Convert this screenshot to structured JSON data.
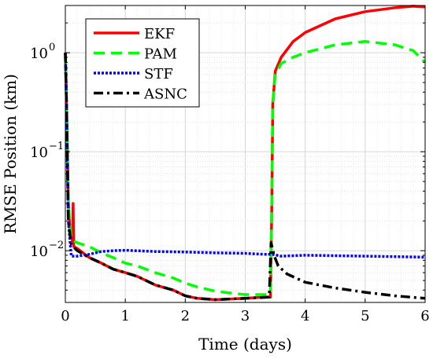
{
  "chart_data": {
    "type": "line",
    "xlabel": "Time (days)",
    "ylabel": "RMSE Position (km)",
    "x_ticks": [
      "0",
      "1",
      "2",
      "3",
      "4",
      "5",
      "6"
    ],
    "y_ticks": [
      {
        "base": "10",
        "exp": "0",
        "value": 1
      },
      {
        "base": "10",
        "exp": "−1",
        "value": 0.1
      },
      {
        "base": "10",
        "exp": "−2",
        "value": 0.01
      }
    ],
    "xlim": [
      0,
      6
    ],
    "ylim": [
      0.003,
      3
    ],
    "y_scale": "log",
    "grid": true,
    "legend_position": "top-left",
    "series": [
      {
        "name": "EKF",
        "color": "#ff0000",
        "dash": "solid",
        "points": [
          [
            0,
            1.0
          ],
          [
            0.02,
            0.3
          ],
          [
            0.05,
            0.03
          ],
          [
            0.08,
            0.015
          ],
          [
            0.12,
            0.0125
          ],
          [
            0.13,
            0.03
          ],
          [
            0.14,
            0.011
          ],
          [
            0.2,
            0.0105
          ],
          [
            0.4,
            0.0085
          ],
          [
            0.6,
            0.0075
          ],
          [
            0.8,
            0.0065
          ],
          [
            1.0,
            0.006
          ],
          [
            1.2,
            0.0055
          ],
          [
            1.5,
            0.0045
          ],
          [
            1.8,
            0.004
          ],
          [
            2.0,
            0.0035
          ],
          [
            2.2,
            0.0033
          ],
          [
            2.5,
            0.0032
          ],
          [
            3.0,
            0.0033
          ],
          [
            3.3,
            0.0034
          ],
          [
            3.42,
            0.0034
          ],
          [
            3.44,
            0.02
          ],
          [
            3.46,
            0.3
          ],
          [
            3.5,
            0.65
          ],
          [
            3.6,
            0.9
          ],
          [
            3.8,
            1.3
          ],
          [
            4.0,
            1.6
          ],
          [
            4.5,
            2.2
          ],
          [
            5.0,
            2.6
          ],
          [
            5.5,
            2.85
          ],
          [
            5.8,
            2.95
          ],
          [
            6.0,
            2.9
          ]
        ]
      },
      {
        "name": "PAM",
        "color": "#00ff00",
        "dash": "dashed",
        "points": [
          [
            0,
            1.0
          ],
          [
            0.02,
            0.3
          ],
          [
            0.05,
            0.03
          ],
          [
            0.1,
            0.013
          ],
          [
            0.2,
            0.012
          ],
          [
            0.4,
            0.011
          ],
          [
            0.6,
            0.0095
          ],
          [
            0.8,
            0.0085
          ],
          [
            1.0,
            0.0075
          ],
          [
            1.2,
            0.007
          ],
          [
            1.5,
            0.006
          ],
          [
            1.8,
            0.0053
          ],
          [
            2.0,
            0.0047
          ],
          [
            2.2,
            0.0043
          ],
          [
            2.5,
            0.0039
          ],
          [
            2.8,
            0.0037
          ],
          [
            3.0,
            0.0036
          ],
          [
            3.42,
            0.0036
          ],
          [
            3.44,
            0.02
          ],
          [
            3.46,
            0.3
          ],
          [
            3.5,
            0.6
          ],
          [
            3.6,
            0.78
          ],
          [
            3.8,
            0.9
          ],
          [
            4.0,
            1.0
          ],
          [
            4.5,
            1.2
          ],
          [
            5.0,
            1.3
          ],
          [
            5.5,
            1.2
          ],
          [
            5.8,
            1.05
          ],
          [
            6.0,
            0.8
          ]
        ]
      },
      {
        "name": "STF",
        "color": "#0000ff",
        "dash": "dotted",
        "points": [
          [
            0,
            1.0
          ],
          [
            0.02,
            0.3
          ],
          [
            0.05,
            0.02
          ],
          [
            0.1,
            0.0088
          ],
          [
            0.2,
            0.0088
          ],
          [
            0.4,
            0.0092
          ],
          [
            0.6,
            0.0098
          ],
          [
            0.8,
            0.01
          ],
          [
            1.0,
            0.0101
          ],
          [
            1.5,
            0.0098
          ],
          [
            2.0,
            0.0097
          ],
          [
            2.5,
            0.0095
          ],
          [
            3.0,
            0.0094
          ],
          [
            3.3,
            0.0092
          ],
          [
            3.42,
            0.0092
          ],
          [
            3.45,
            0.0092
          ],
          [
            3.6,
            0.0088
          ],
          [
            4.0,
            0.009
          ],
          [
            4.5,
            0.0089
          ],
          [
            5.0,
            0.0088
          ],
          [
            5.5,
            0.0087
          ],
          [
            6.0,
            0.0086
          ]
        ]
      },
      {
        "name": "ASNC",
        "color": "#000000",
        "dash": "dashdot",
        "points": [
          [
            0,
            1.0
          ],
          [
            0.02,
            0.3
          ],
          [
            0.05,
            0.02
          ],
          [
            0.1,
            0.0115
          ],
          [
            0.2,
            0.01
          ],
          [
            0.4,
            0.0085
          ],
          [
            0.6,
            0.0075
          ],
          [
            0.8,
            0.0065
          ],
          [
            1.0,
            0.006
          ],
          [
            1.2,
            0.0055
          ],
          [
            1.5,
            0.0045
          ],
          [
            1.8,
            0.004
          ],
          [
            2.0,
            0.0035
          ],
          [
            2.2,
            0.0033
          ],
          [
            2.5,
            0.0032
          ],
          [
            3.0,
            0.0033
          ],
          [
            3.4,
            0.0034
          ],
          [
            3.43,
            0.012
          ],
          [
            3.48,
            0.009
          ],
          [
            3.55,
            0.007
          ],
          [
            3.7,
            0.0058
          ],
          [
            4.0,
            0.0048
          ],
          [
            4.5,
            0.0042
          ],
          [
            5.0,
            0.0038
          ],
          [
            5.5,
            0.0035
          ],
          [
            6.0,
            0.0033
          ]
        ]
      }
    ]
  }
}
